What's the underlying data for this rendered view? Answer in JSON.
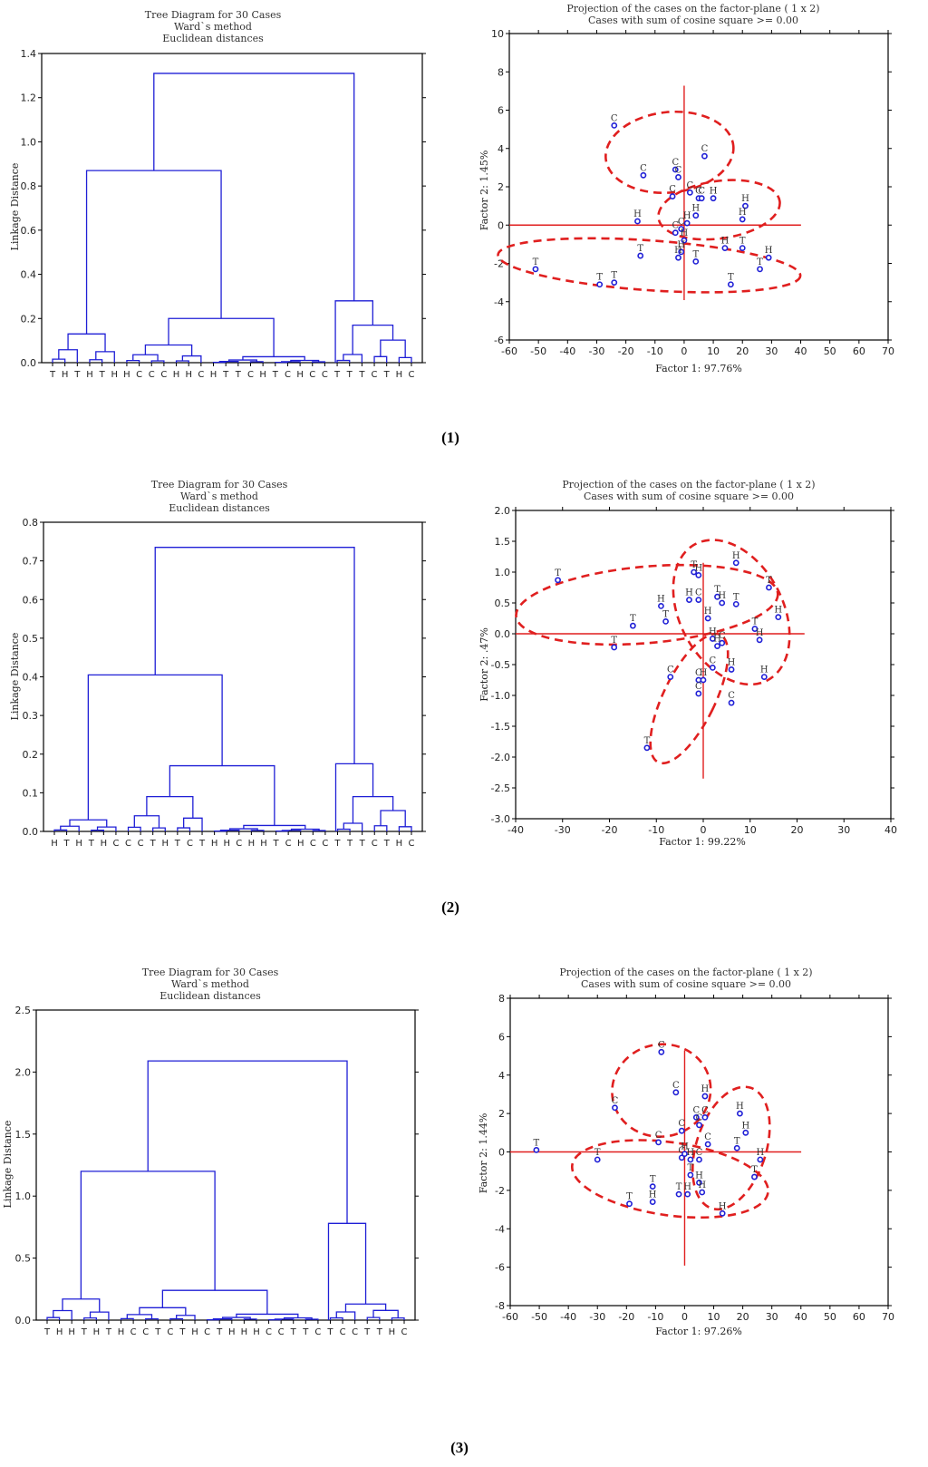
{
  "colors": {
    "dendro": "#1f1fd6",
    "ellipse": "#e01f1f",
    "axisline": "#e01f1f",
    "point": "#1f1fd6",
    "frame": "#000000"
  },
  "panels": [
    {
      "caption": "(1)",
      "dendrogram": {
        "type": "dendrogram",
        "title": [
          "Tree Diagram for 30 Cases",
          "Ward`s method",
          "Euclidean distances"
        ],
        "ylabel": "Linkage Distance",
        "ylim": [
          0,
          1.4
        ],
        "yticks": [
          0.0,
          0.2,
          0.4,
          0.6,
          0.8,
          1.0,
          1.2,
          1.4
        ],
        "leaves": [
          "T",
          "H",
          "T",
          "H",
          "T",
          "H",
          "H",
          "C",
          "C",
          "C",
          "H",
          "H",
          "C",
          "H",
          "T",
          "T",
          "C",
          "H",
          "T",
          "C",
          "H",
          "C",
          "C",
          "T",
          "T",
          "T",
          "C",
          "T",
          "H",
          "C"
        ],
        "merge_heights": {
          "root": 1.31,
          "left_major": 0.87,
          "right_cluster": 0.28,
          "right_sub": 0.17,
          "left_group": 0.13,
          "mid_group": 0.2,
          "mid_sub": 0.08
        }
      },
      "scatter": {
        "type": "scatter",
        "title": [
          "Projection of the cases on the factor-plane ( 1 x  2)",
          "Cases with sum of cosine square >= 0.00"
        ],
        "xlabel": "Factor 1: 97.76%",
        "ylabel": "Factor 2:  1.45%",
        "xlim": [
          -60,
          70
        ],
        "ylim": [
          -6,
          10
        ],
        "xticks": [
          -60,
          -50,
          -40,
          -30,
          -20,
          -10,
          0,
          10,
          20,
          30,
          40,
          50,
          60,
          70
        ],
        "yticks": [
          -6,
          -4,
          -2,
          0,
          2,
          4,
          6,
          8,
          10
        ],
        "points": [
          {
            "x": -24,
            "y": 5.2,
            "label": "C"
          },
          {
            "x": -14,
            "y": 2.6,
            "label": "C"
          },
          {
            "x": -3,
            "y": 2.9,
            "label": "C"
          },
          {
            "x": -2,
            "y": 2.5,
            "label": "C"
          },
          {
            "x": 7,
            "y": 3.6,
            "label": "C"
          },
          {
            "x": -4,
            "y": 1.5,
            "label": "C"
          },
          {
            "x": 2,
            "y": 1.7,
            "label": "C"
          },
          {
            "x": 5,
            "y": 1.4,
            "label": "C"
          },
          {
            "x": 6,
            "y": 1.4,
            "label": "C"
          },
          {
            "x": 10,
            "y": 1.4,
            "label": "H"
          },
          {
            "x": 21,
            "y": 1.0,
            "label": "H"
          },
          {
            "x": 4,
            "y": 0.5,
            "label": "H"
          },
          {
            "x": 1,
            "y": 0.1,
            "label": "H"
          },
          {
            "x": 20,
            "y": 0.3,
            "label": "H"
          },
          {
            "x": -16,
            "y": 0.2,
            "label": "H"
          },
          {
            "x": -1,
            "y": -0.2,
            "label": "C"
          },
          {
            "x": -3,
            "y": -0.4,
            "label": "C"
          },
          {
            "x": 0,
            "y": -0.8,
            "label": "H"
          },
          {
            "x": -1,
            "y": -1.4,
            "label": "H"
          },
          {
            "x": -2,
            "y": -1.7,
            "label": "H"
          },
          {
            "x": 4,
            "y": -1.9,
            "label": "T"
          },
          {
            "x": 14,
            "y": -1.2,
            "label": "H"
          },
          {
            "x": 20,
            "y": -1.2,
            "label": "T"
          },
          {
            "x": 29,
            "y": -1.7,
            "label": "H"
          },
          {
            "x": 26,
            "y": -2.3,
            "label": "T"
          },
          {
            "x": 16,
            "y": -3.1,
            "label": "T"
          },
          {
            "x": -15,
            "y": -1.6,
            "label": "T"
          },
          {
            "x": -51,
            "y": -2.3,
            "label": "T"
          },
          {
            "x": -29,
            "y": -3.1,
            "label": "T"
          },
          {
            "x": -24,
            "y": -3.0,
            "label": "T"
          }
        ],
        "ellipses": [
          {
            "cx": -5,
            "cy": 3.8,
            "rx": 22,
            "ry": 2.1,
            "angle": -6
          },
          {
            "cx": 12,
            "cy": 0.8,
            "rx": 21,
            "ry": 1.5,
            "angle": -8
          },
          {
            "cx": -12,
            "cy": -2.1,
            "rx": 52,
            "ry": 1.3,
            "angle": 4
          }
        ]
      }
    },
    {
      "caption": "(2)",
      "dendrogram": {
        "type": "dendrogram",
        "title": [
          "Tree Diagram for 30 Cases",
          "Ward`s method",
          "Euclidean distances"
        ],
        "ylabel": "Linkage Distance",
        "ylim": [
          0,
          0.8
        ],
        "yticks": [
          0.0,
          0.1,
          0.2,
          0.3,
          0.4,
          0.5,
          0.6,
          0.7,
          0.8
        ],
        "leaves": [
          "H",
          "T",
          "H",
          "T",
          "H",
          "C",
          "C",
          "C",
          "T",
          "H",
          "T",
          "C",
          "T",
          "H",
          "H",
          "C",
          "H",
          "H",
          "T",
          "C",
          "H",
          "C",
          "C",
          "T",
          "T",
          "T",
          "C",
          "T",
          "H",
          "C"
        ],
        "merge_heights": {
          "root": 0.735,
          "left_major": 0.405,
          "right_cluster": 0.175,
          "right_sub": 0.09,
          "left_group": 0.03,
          "mid_group": 0.17,
          "mid_sub": 0.09
        }
      },
      "scatter": {
        "type": "scatter",
        "title": [
          "Projection of the cases on the factor-plane ( 1 x  2)",
          "Cases with sum of cosine square >= 0.00"
        ],
        "xlabel": "Factor 1: 99.22%",
        "ylabel": "Factor 2:  .47%",
        "xlim": [
          -40,
          40
        ],
        "ylim": [
          -3.0,
          2.0
        ],
        "xticks": [
          -40,
          -30,
          -20,
          -10,
          0,
          10,
          20,
          30,
          40
        ],
        "yticks": [
          -3.0,
          -2.5,
          -2.0,
          -1.5,
          -1.0,
          -0.5,
          0.0,
          0.5,
          1.0,
          1.5,
          2.0
        ],
        "points": [
          {
            "x": -31,
            "y": 0.87,
            "label": "T"
          },
          {
            "x": -15,
            "y": 0.13,
            "label": "T"
          },
          {
            "x": -19,
            "y": -0.22,
            "label": "T"
          },
          {
            "x": -9,
            "y": 0.45,
            "label": "H"
          },
          {
            "x": -8,
            "y": 0.2,
            "label": "T"
          },
          {
            "x": -2,
            "y": 1.0,
            "label": "T"
          },
          {
            "x": -1,
            "y": 0.95,
            "label": "H"
          },
          {
            "x": -3,
            "y": 0.55,
            "label": "H"
          },
          {
            "x": -1,
            "y": 0.55,
            "label": "C"
          },
          {
            "x": 1,
            "y": 0.25,
            "label": "H"
          },
          {
            "x": 3,
            "y": 0.6,
            "label": "T"
          },
          {
            "x": 4,
            "y": 0.5,
            "label": "H"
          },
          {
            "x": 7,
            "y": 0.48,
            "label": "T"
          },
          {
            "x": 7,
            "y": 1.15,
            "label": "H"
          },
          {
            "x": 14,
            "y": 0.75,
            "label": "T"
          },
          {
            "x": 16,
            "y": 0.27,
            "label": "H"
          },
          {
            "x": 11,
            "y": 0.08,
            "label": "T"
          },
          {
            "x": 12,
            "y": -0.1,
            "label": "H"
          },
          {
            "x": 2,
            "y": -0.08,
            "label": "H"
          },
          {
            "x": 4,
            "y": -0.15,
            "label": "C"
          },
          {
            "x": 3,
            "y": -0.2,
            "label": "H"
          },
          {
            "x": -7,
            "y": -0.7,
            "label": "C"
          },
          {
            "x": 2,
            "y": -0.55,
            "label": "C"
          },
          {
            "x": 6,
            "y": -0.58,
            "label": "H"
          },
          {
            "x": 13,
            "y": -0.7,
            "label": "H"
          },
          {
            "x": -1,
            "y": -0.75,
            "label": "C"
          },
          {
            "x": 0,
            "y": -0.75,
            "label": "H"
          },
          {
            "x": -1,
            "y": -0.97,
            "label": "C"
          },
          {
            "x": 6,
            "y": -1.12,
            "label": "C"
          },
          {
            "x": -12,
            "y": -1.85,
            "label": "T"
          }
        ],
        "ellipses": [
          {
            "cx": -12,
            "cy": 0.47,
            "rx": 28,
            "ry": 0.62,
            "angle": -5
          },
          {
            "cx": 6,
            "cy": 0.35,
            "rx": 11,
            "ry": 1.25,
            "angle": -28
          },
          {
            "cx": -3,
            "cy": -1.05,
            "rx": 5.5,
            "ry": 1.15,
            "angle": 26
          }
        ]
      }
    },
    {
      "caption": "(3)",
      "dendrogram": {
        "type": "dendrogram",
        "title": [
          "Tree Diagram for 30 Cases",
          "Ward`s method",
          "Euclidean distances"
        ],
        "ylabel": "Linkage Distance",
        "ylim": [
          0,
          2.5
        ],
        "yticks": [
          0.0,
          0.5,
          1.0,
          1.5,
          2.0,
          2.5
        ],
        "leaves": [
          "T",
          "H",
          "H",
          "T",
          "H",
          "T",
          "H",
          "C",
          "C",
          "T",
          "C",
          "T",
          "H",
          "C",
          "T",
          "H",
          "H",
          "H",
          "C",
          "C",
          "T",
          "T",
          "C",
          "T",
          "C",
          "C",
          "T",
          "T",
          "H",
          "C"
        ],
        "merge_heights": {
          "root": 2.09,
          "left_major": 1.2,
          "right_cluster": 0.78,
          "right_sub": 0.13,
          "left_group": 0.17,
          "mid_group": 0.24,
          "mid_sub": 0.1
        }
      },
      "scatter": {
        "type": "scatter",
        "title": [
          "Projection of the cases on the factor-plane ( 1 x  2)",
          "Cases with sum of cosine square >= 0.00"
        ],
        "xlabel": "Factor 1: 97.26%",
        "ylabel": "Factor 2:  1.44%",
        "xlim": [
          -60,
          70
        ],
        "ylim": [
          -8,
          8
        ],
        "xticks": [
          -60,
          -50,
          -40,
          -30,
          -20,
          -10,
          0,
          10,
          20,
          30,
          40,
          50,
          60,
          70
        ],
        "yticks": [
          -8,
          -6,
          -4,
          -2,
          0,
          2,
          4,
          6,
          8
        ],
        "points": [
          {
            "x": -51,
            "y": 0.1,
            "label": "T"
          },
          {
            "x": -30,
            "y": -0.4,
            "label": "T"
          },
          {
            "x": -24,
            "y": 2.3,
            "label": "C"
          },
          {
            "x": -8,
            "y": 5.2,
            "label": "C"
          },
          {
            "x": -3,
            "y": 3.1,
            "label": "C"
          },
          {
            "x": 7,
            "y": 2.9,
            "label": "H"
          },
          {
            "x": 4,
            "y": 1.8,
            "label": "C"
          },
          {
            "x": 7,
            "y": 1.8,
            "label": "C"
          },
          {
            "x": -9,
            "y": 0.5,
            "label": "C"
          },
          {
            "x": -1,
            "y": 1.1,
            "label": "C"
          },
          {
            "x": 8,
            "y": 0.4,
            "label": "C"
          },
          {
            "x": 19,
            "y": 2.0,
            "label": "H"
          },
          {
            "x": 21,
            "y": 1.0,
            "label": "H"
          },
          {
            "x": 18,
            "y": 0.2,
            "label": "T"
          },
          {
            "x": 26,
            "y": -0.4,
            "label": "H"
          },
          {
            "x": 24,
            "y": -1.3,
            "label": "T"
          },
          {
            "x": -1,
            "y": -0.3,
            "label": "C"
          },
          {
            "x": 2,
            "y": -0.4,
            "label": "H"
          },
          {
            "x": 5,
            "y": -0.4,
            "label": "C"
          },
          {
            "x": 2,
            "y": -1.2,
            "label": "T"
          },
          {
            "x": 5,
            "y": -1.6,
            "label": "H"
          },
          {
            "x": 6,
            "y": -2.1,
            "label": "H"
          },
          {
            "x": -11,
            "y": -1.8,
            "label": "T"
          },
          {
            "x": -11,
            "y": -2.6,
            "label": "H"
          },
          {
            "x": -19,
            "y": -2.7,
            "label": "T"
          },
          {
            "x": -2,
            "y": -2.2,
            "label": "T"
          },
          {
            "x": 1,
            "y": -2.2,
            "label": "H"
          },
          {
            "x": 13,
            "y": -3.2,
            "label": "H"
          },
          {
            "x": 0,
            "y": -0.1,
            "label": "H"
          },
          {
            "x": 5,
            "y": 1.4,
            "label": "C"
          }
        ],
        "ellipses": [
          {
            "cx": -8,
            "cy": 3.2,
            "rx": 17,
            "ry": 2.4,
            "angle": -12
          },
          {
            "cx": 16,
            "cy": 0.2,
            "rx": 12,
            "ry": 3.3,
            "angle": 18
          },
          {
            "cx": -5,
            "cy": -1.4,
            "rx": 34,
            "ry": 1.9,
            "angle": 8
          }
        ]
      }
    }
  ]
}
